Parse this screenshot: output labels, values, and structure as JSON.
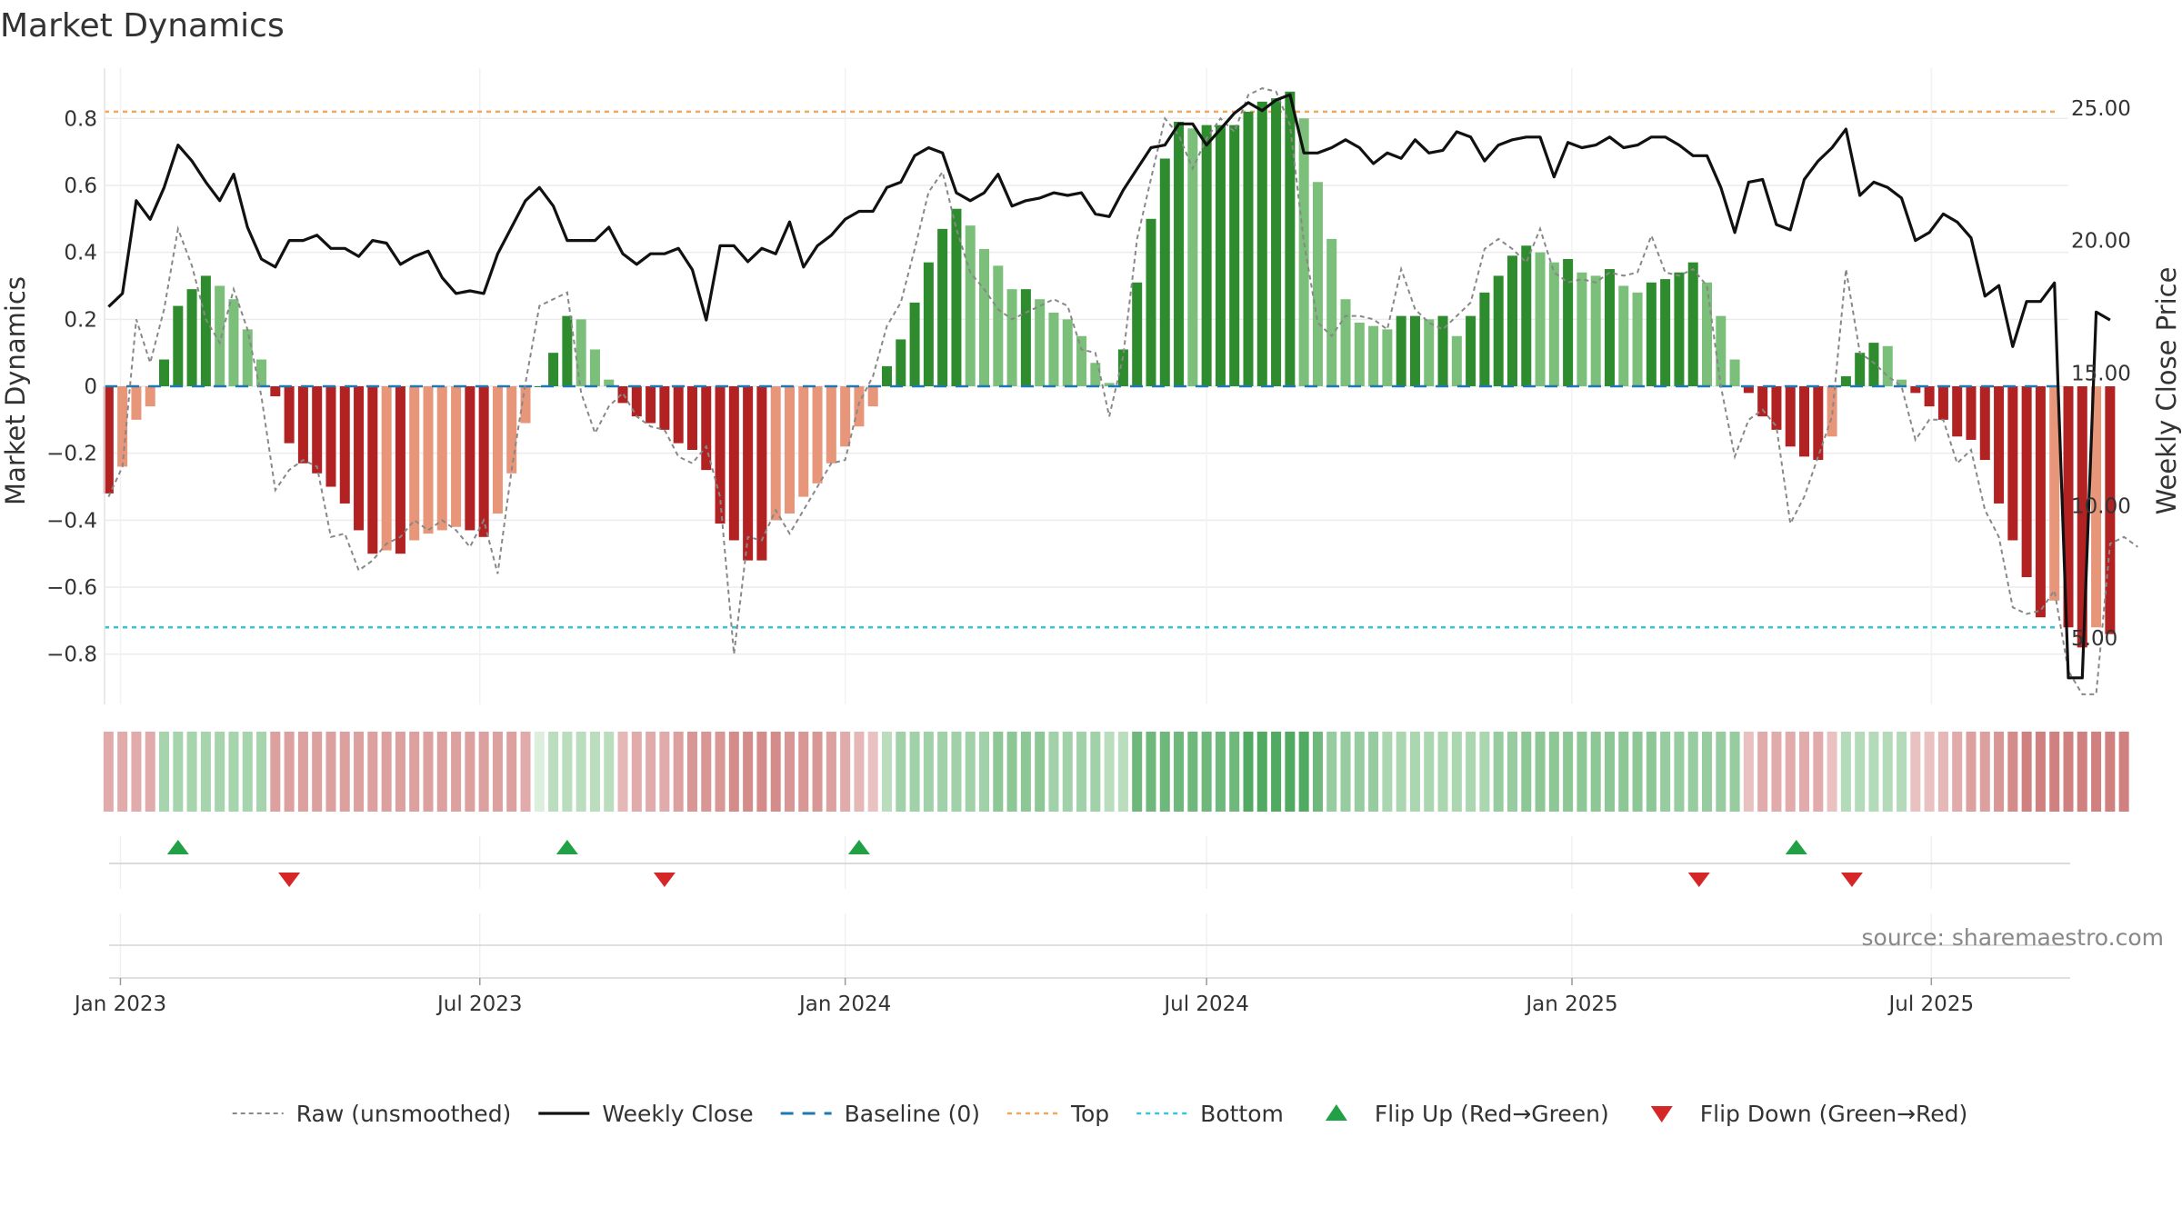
{
  "chart_data": {
    "type": "bar",
    "title": "Market Dynamics",
    "ylabel": "Market Dynamics",
    "y2label": "Weekly Close Price",
    "ylim": [
      -0.95,
      0.95
    ],
    "y2lim": [
      2.5,
      26.5
    ],
    "yticks": [
      "−0.8",
      "−0.6",
      "−0.4",
      "−0.2",
      "0",
      "0.2",
      "0.4",
      "0.6",
      "0.8"
    ],
    "y2ticks": [
      "5.00",
      "10.00",
      "15.00",
      "20.00",
      "25.00"
    ],
    "xticks": [
      "Jan 2023",
      "Jul 2023",
      "Jan 2024",
      "Jul 2024",
      "Jan 2025",
      "Jul 2025"
    ],
    "xlim": [
      "2022-12-24",
      "2025-09-08"
    ],
    "top_level": 0.82,
    "bottom_level": -0.72,
    "bar_values": [
      -0.32,
      -0.24,
      -0.1,
      -0.06,
      0.08,
      0.24,
      0.29,
      0.33,
      0.3,
      0.26,
      0.17,
      0.08,
      -0.03,
      -0.17,
      -0.23,
      -0.26,
      -0.3,
      -0.35,
      -0.43,
      -0.5,
      -0.49,
      -0.5,
      -0.46,
      -0.44,
      -0.43,
      -0.42,
      -0.43,
      -0.45,
      -0.38,
      -0.26,
      -0.11,
      0.0,
      0.1,
      0.21,
      0.2,
      0.11,
      0.02,
      -0.05,
      -0.09,
      -0.11,
      -0.13,
      -0.17,
      -0.19,
      -0.25,
      -0.41,
      -0.46,
      -0.52,
      -0.52,
      -0.4,
      -0.38,
      -0.33,
      -0.29,
      -0.23,
      -0.18,
      -0.12,
      -0.06,
      0.06,
      0.14,
      0.25,
      0.37,
      0.47,
      0.53,
      0.48,
      0.41,
      0.36,
      0.29,
      0.29,
      0.26,
      0.22,
      0.2,
      0.15,
      0.07,
      0.01,
      0.11,
      0.31,
      0.5,
      0.68,
      0.79,
      0.77,
      0.78,
      0.78,
      0.78,
      0.82,
      0.85,
      0.86,
      0.88,
      0.8,
      0.61,
      0.44,
      0.26,
      0.19,
      0.18,
      0.17,
      0.21,
      0.21,
      0.2,
      0.21,
      0.15,
      0.21,
      0.28,
      0.33,
      0.39,
      0.42,
      0.4,
      0.37,
      0.38,
      0.34,
      0.33,
      0.35,
      0.3,
      0.28,
      0.31,
      0.32,
      0.34,
      0.37,
      0.31,
      0.21,
      0.08,
      -0.02,
      -0.09,
      -0.13,
      -0.18,
      -0.21,
      -0.22,
      -0.15,
      0.03,
      0.1,
      0.13,
      0.12,
      0.02,
      -0.02,
      -0.06,
      -0.1,
      -0.15,
      -0.16,
      -0.22,
      -0.35,
      -0.46,
      -0.57,
      -0.69,
      -0.64,
      -0.72,
      -0.78,
      -0.72,
      -0.74
    ],
    "raw_values": [
      -0.33,
      -0.24,
      0.2,
      0.07,
      0.23,
      0.47,
      0.36,
      0.2,
      0.13,
      0.29,
      0.17,
      -0.03,
      -0.31,
      -0.25,
      -0.22,
      -0.24,
      -0.45,
      -0.44,
      -0.55,
      -0.52,
      -0.47,
      -0.45,
      -0.4,
      -0.43,
      -0.4,
      -0.43,
      -0.48,
      -0.4,
      -0.56,
      -0.25,
      0.01,
      0.24,
      0.26,
      0.28,
      -0.02,
      -0.14,
      -0.06,
      -0.02,
      -0.09,
      -0.12,
      -0.13,
      -0.21,
      -0.23,
      -0.18,
      -0.33,
      -0.8,
      -0.45,
      -0.46,
      -0.37,
      -0.44,
      -0.37,
      -0.3,
      -0.23,
      -0.22,
      -0.05,
      0.03,
      0.18,
      0.25,
      0.41,
      0.58,
      0.64,
      0.47,
      0.34,
      0.29,
      0.23,
      0.2,
      0.22,
      0.24,
      0.26,
      0.24,
      0.11,
      0.1,
      -0.09,
      0.09,
      0.44,
      0.62,
      0.8,
      0.75,
      0.65,
      0.74,
      0.8,
      0.76,
      0.87,
      0.89,
      0.88,
      0.78,
      0.43,
      0.19,
      0.15,
      0.21,
      0.21,
      0.2,
      0.17,
      0.35,
      0.23,
      0.19,
      0.17,
      0.21,
      0.25,
      0.41,
      0.44,
      0.41,
      0.37,
      0.47,
      0.34,
      0.31,
      0.32,
      0.31,
      0.34,
      0.33,
      0.34,
      0.45,
      0.34,
      0.33,
      0.35,
      0.3,
      0.0,
      -0.21,
      -0.1,
      -0.07,
      -0.12,
      -0.41,
      -0.33,
      -0.21,
      -0.09,
      0.35,
      0.1,
      0.07,
      0.03,
      0.0,
      -0.16,
      -0.1,
      -0.1,
      -0.23,
      -0.19,
      -0.37,
      -0.45,
      -0.66,
      -0.68,
      -0.67,
      -0.61,
      -0.85,
      -0.92,
      -0.92,
      -0.47,
      -0.45,
      -0.48
    ],
    "close_values": [
      17.5,
      18.0,
      21.5,
      20.8,
      22.0,
      23.6,
      23.0,
      22.2,
      21.5,
      22.5,
      20.5,
      19.3,
      19.0,
      20.0,
      20.0,
      20.2,
      19.7,
      19.7,
      19.4,
      20.0,
      19.9,
      19.1,
      19.4,
      19.6,
      18.6,
      18.0,
      18.1,
      18.0,
      19.5,
      20.5,
      21.5,
      22.0,
      21.3,
      20.0,
      20.0,
      20.0,
      20.5,
      19.5,
      19.1,
      19.5,
      19.5,
      19.7,
      18.9,
      17.0,
      19.8,
      19.8,
      19.2,
      19.7,
      19.5,
      20.7,
      19.0,
      19.8,
      20.2,
      20.8,
      21.1,
      21.1,
      22.0,
      22.2,
      23.2,
      23.5,
      23.3,
      21.8,
      21.5,
      21.8,
      22.5,
      21.3,
      21.5,
      21.6,
      21.8,
      21.7,
      21.8,
      21.0,
      20.9,
      21.9,
      22.7,
      23.5,
      23.6,
      24.4,
      24.4,
      23.6,
      24.2,
      24.8,
      25.2,
      24.9,
      25.3,
      25.5,
      23.3,
      23.3,
      23.5,
      23.8,
      23.5,
      22.9,
      23.3,
      23.1,
      23.8,
      23.3,
      23.4,
      24.1,
      23.9,
      23.0,
      23.6,
      23.8,
      23.9,
      23.9,
      22.4,
      23.7,
      23.5,
      23.6,
      23.9,
      23.5,
      23.6,
      23.9,
      23.9,
      23.6,
      23.2,
      23.2,
      22.0,
      20.3,
      22.2,
      22.3,
      20.6,
      20.4,
      22.3,
      23.0,
      23.5,
      24.2,
      21.7,
      22.2,
      22.0,
      21.6,
      20.0,
      20.3,
      21.0,
      20.7,
      20.1,
      17.9,
      18.3,
      16.0,
      17.7,
      17.7,
      18.4,
      3.5,
      3.5,
      17.3,
      17.0
    ],
    "heat_values": [
      -0.3,
      -0.3,
      -0.3,
      -0.3,
      0.27,
      0.27,
      0.27,
      0.27,
      0.27,
      0.27,
      0.27,
      0.27,
      -0.38,
      -0.38,
      -0.38,
      -0.38,
      -0.38,
      -0.38,
      -0.38,
      -0.38,
      -0.38,
      -0.38,
      -0.38,
      -0.38,
      -0.38,
      -0.38,
      -0.38,
      -0.38,
      -0.38,
      -0.38,
      -0.3,
      0.0,
      0.17,
      0.17,
      0.17,
      0.17,
      0.17,
      -0.22,
      -0.3,
      -0.3,
      -0.3,
      -0.38,
      -0.45,
      -0.45,
      -0.45,
      -0.52,
      -0.52,
      -0.52,
      -0.52,
      -0.45,
      -0.45,
      -0.45,
      -0.38,
      -0.3,
      -0.22,
      -0.15,
      0.17,
      0.3,
      0.3,
      0.3,
      0.3,
      0.3,
      0.3,
      0.3,
      0.4,
      0.4,
      0.4,
      0.4,
      0.3,
      0.3,
      0.3,
      0.3,
      0.17,
      0.17,
      0.55,
      0.55,
      0.55,
      0.55,
      0.55,
      0.55,
      0.55,
      0.55,
      0.7,
      0.7,
      0.7,
      0.7,
      0.7,
      0.55,
      0.35,
      0.35,
      0.35,
      0.35,
      0.25,
      0.25,
      0.25,
      0.25,
      0.25,
      0.25,
      0.25,
      0.25,
      0.35,
      0.35,
      0.4,
      0.4,
      0.4,
      0.4,
      0.4,
      0.4,
      0.4,
      0.4,
      0.4,
      0.4,
      0.35,
      0.35,
      0.35,
      0.35,
      0.35,
      0.35,
      -0.15,
      -0.3,
      -0.3,
      -0.3,
      -0.3,
      -0.3,
      -0.15,
      0.2,
      0.2,
      0.2,
      0.2,
      0.2,
      -0.15,
      -0.15,
      -0.22,
      -0.3,
      -0.38,
      -0.38,
      -0.45,
      -0.52,
      -0.6,
      -0.6,
      -0.6,
      -0.6,
      -0.6,
      -0.6,
      -0.6,
      -0.6
    ],
    "flip_up_dates": [
      "2023-01-30",
      "2023-08-14",
      "2024-01-08",
      "2025-04-24"
    ],
    "flip_down_dates": [
      "2023-03-27",
      "2023-10-02",
      "2025-03-06",
      "2025-05-22"
    ],
    "legend_position": "bottom",
    "grid": true,
    "source": "source: sharemaestro.com",
    "legend": [
      {
        "key": "raw",
        "label": "Raw (unsmoothed)"
      },
      {
        "key": "close",
        "label": "Weekly Close"
      },
      {
        "key": "baseline",
        "label": "Baseline (0)"
      },
      {
        "key": "top",
        "label": "Top"
      },
      {
        "key": "bottom",
        "label": "Bottom"
      },
      {
        "key": "flipup",
        "label": "Flip Up (Red→Green)"
      },
      {
        "key": "flipdown",
        "label": "Flip Down (Green→Red)"
      }
    ],
    "colors": {
      "strong_green": "#2e8b2e",
      "light_green": "#7bbf7b",
      "strong_red": "#b22222",
      "light_red": "#e8967a",
      "close_line": "#111111",
      "raw_line": "#888888",
      "baseline": "#1f77b4",
      "top": "#f0a860",
      "bottom": "#36c5d6",
      "flip_up": "#22a045",
      "flip_down": "#d62728"
    }
  }
}
